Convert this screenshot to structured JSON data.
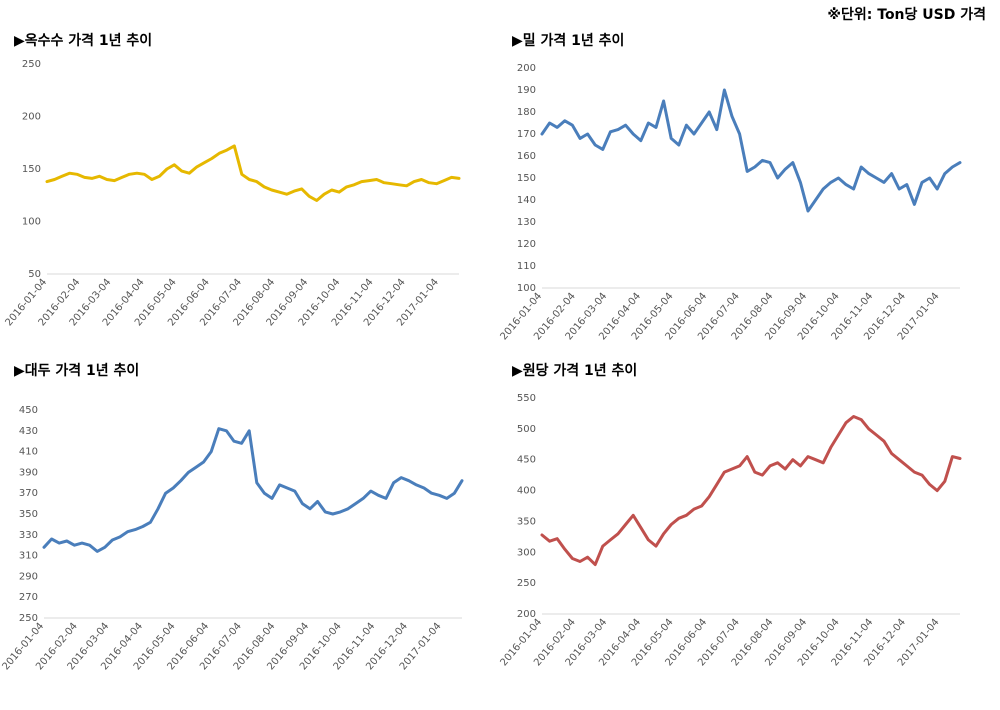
{
  "unit_note": "※단위: Ton당 USD 가격",
  "chart_data": [
    {
      "type": "line",
      "title": "▶옥수수 가격 1년 추이",
      "color": "#E6B800",
      "ylim": [
        50,
        250
      ],
      "yticks": [
        50,
        100,
        150,
        200,
        250
      ],
      "xticks": [
        "2016-01-04",
        "2016-02-04",
        "2016-03-04",
        "2016-04-04",
        "2016-05-04",
        "2016-06-04",
        "2016-07-04",
        "2016-08-04",
        "2016-09-04",
        "2016-10-04",
        "2016-11-04",
        "2016-12-04",
        "2017-01-04"
      ],
      "x": [
        "2016-01-04",
        "2016-01-11",
        "2016-01-18",
        "2016-01-25",
        "2016-02-01",
        "2016-02-08",
        "2016-02-15",
        "2016-02-22",
        "2016-02-29",
        "2016-03-07",
        "2016-03-14",
        "2016-03-21",
        "2016-03-28",
        "2016-04-04",
        "2016-04-11",
        "2016-04-18",
        "2016-04-25",
        "2016-05-02",
        "2016-05-09",
        "2016-05-16",
        "2016-05-23",
        "2016-05-30",
        "2016-06-06",
        "2016-06-13",
        "2016-06-20",
        "2016-06-27",
        "2016-07-04",
        "2016-07-11",
        "2016-07-18",
        "2016-07-25",
        "2016-08-01",
        "2016-08-08",
        "2016-08-15",
        "2016-08-22",
        "2016-08-29",
        "2016-09-05",
        "2016-09-12",
        "2016-09-19",
        "2016-09-26",
        "2016-10-03",
        "2016-10-10",
        "2016-10-17",
        "2016-10-24",
        "2016-10-31",
        "2016-11-07",
        "2016-11-14",
        "2016-11-21",
        "2016-11-28",
        "2016-12-05",
        "2016-12-12",
        "2016-12-19",
        "2016-12-26",
        "2017-01-02",
        "2017-01-09",
        "2017-01-16",
        "2017-01-23"
      ],
      "y": [
        138,
        140,
        143,
        146,
        145,
        142,
        141,
        143,
        140,
        139,
        142,
        145,
        146,
        145,
        140,
        143,
        150,
        154,
        148,
        146,
        152,
        156,
        160,
        165,
        168,
        172,
        145,
        140,
        138,
        133,
        130,
        128,
        126,
        129,
        131,
        124,
        120,
        126,
        130,
        128,
        133,
        135,
        138,
        139,
        140,
        137,
        136,
        135,
        134,
        138,
        140,
        137,
        136,
        139,
        142,
        141
      ]
    },
    {
      "type": "line",
      "title": "▶밀 가격 1년 추이",
      "color": "#4A7EBB",
      "ylim": [
        100,
        200
      ],
      "yticks": [
        100,
        110,
        120,
        130,
        140,
        150,
        160,
        170,
        180,
        190,
        200
      ],
      "xticks": [
        "2016-01-04",
        "2016-02-04",
        "2016-03-04",
        "2016-04-04",
        "2016-05-04",
        "2016-06-04",
        "2016-07-04",
        "2016-08-04",
        "2016-09-04",
        "2016-10-04",
        "2016-11-04",
        "2016-12-04",
        "2017-01-04"
      ],
      "x": [
        "2016-01-04",
        "2016-01-11",
        "2016-01-18",
        "2016-01-25",
        "2016-02-01",
        "2016-02-08",
        "2016-02-15",
        "2016-02-22",
        "2016-02-29",
        "2016-03-07",
        "2016-03-14",
        "2016-03-21",
        "2016-03-28",
        "2016-04-04",
        "2016-04-11",
        "2016-04-18",
        "2016-04-25",
        "2016-05-02",
        "2016-05-09",
        "2016-05-16",
        "2016-05-23",
        "2016-05-30",
        "2016-06-06",
        "2016-06-13",
        "2016-06-20",
        "2016-06-27",
        "2016-07-04",
        "2016-07-11",
        "2016-07-18",
        "2016-07-25",
        "2016-08-01",
        "2016-08-08",
        "2016-08-15",
        "2016-08-22",
        "2016-08-29",
        "2016-09-05",
        "2016-09-12",
        "2016-09-19",
        "2016-09-26",
        "2016-10-03",
        "2016-10-10",
        "2016-10-17",
        "2016-10-24",
        "2016-10-31",
        "2016-11-07",
        "2016-11-14",
        "2016-11-21",
        "2016-11-28",
        "2016-12-05",
        "2016-12-12",
        "2016-12-19",
        "2016-12-26",
        "2017-01-02",
        "2017-01-09",
        "2017-01-16",
        "2017-01-23"
      ],
      "y": [
        170,
        175,
        173,
        176,
        174,
        168,
        170,
        165,
        163,
        171,
        172,
        174,
        170,
        167,
        175,
        173,
        185,
        168,
        165,
        174,
        170,
        175,
        180,
        172,
        190,
        178,
        170,
        153,
        155,
        158,
        157,
        150,
        154,
        157,
        148,
        135,
        140,
        145,
        148,
        150,
        147,
        145,
        155,
        152,
        150,
        148,
        152,
        145,
        147,
        138,
        148,
        150,
        145,
        152,
        155,
        157
      ]
    },
    {
      "type": "line",
      "title": "▶대두 가격 1년 추이",
      "color": "#4A7EBB",
      "ylim": [
        250,
        450
      ],
      "yticks": [
        250,
        270,
        290,
        310,
        330,
        350,
        370,
        390,
        410,
        430,
        450
      ],
      "xticks": [
        "2016-01-04",
        "2016-02-04",
        "2016-03-04",
        "2016-04-04",
        "2016-05-04",
        "2016-06-04",
        "2016-07-04",
        "2016-08-04",
        "2016-09-04",
        "2016-10-04",
        "2016-11-04",
        "2016-12-04",
        "2017-01-04"
      ],
      "x": [
        "2016-01-04",
        "2016-01-11",
        "2016-01-18",
        "2016-01-25",
        "2016-02-01",
        "2016-02-08",
        "2016-02-15",
        "2016-02-22",
        "2016-02-29",
        "2016-03-07",
        "2016-03-14",
        "2016-03-21",
        "2016-03-28",
        "2016-04-04",
        "2016-04-11",
        "2016-04-18",
        "2016-04-25",
        "2016-05-02",
        "2016-05-09",
        "2016-05-16",
        "2016-05-23",
        "2016-05-30",
        "2016-06-06",
        "2016-06-13",
        "2016-06-20",
        "2016-06-27",
        "2016-07-04",
        "2016-07-11",
        "2016-07-18",
        "2016-07-25",
        "2016-08-01",
        "2016-08-08",
        "2016-08-15",
        "2016-08-22",
        "2016-08-29",
        "2016-09-05",
        "2016-09-12",
        "2016-09-19",
        "2016-09-26",
        "2016-10-03",
        "2016-10-10",
        "2016-10-17",
        "2016-10-24",
        "2016-10-31",
        "2016-11-07",
        "2016-11-14",
        "2016-11-21",
        "2016-11-28",
        "2016-12-05",
        "2016-12-12",
        "2016-12-19",
        "2016-12-26",
        "2017-01-02",
        "2017-01-09",
        "2017-01-16",
        "2017-01-23"
      ],
      "y": [
        318,
        326,
        322,
        324,
        320,
        322,
        320,
        314,
        318,
        325,
        328,
        333,
        335,
        338,
        342,
        355,
        370,
        375,
        382,
        390,
        395,
        400,
        410,
        432,
        430,
        420,
        418,
        430,
        380,
        370,
        365,
        378,
        375,
        372,
        360,
        355,
        362,
        352,
        350,
        352,
        355,
        360,
        365,
        372,
        368,
        365,
        380,
        385,
        382,
        378,
        375,
        370,
        368,
        365,
        370,
        382
      ]
    },
    {
      "type": "line",
      "title": "▶원당 가격 1년 추이",
      "color": "#C0504D",
      "ylim": [
        200,
        550
      ],
      "yticks": [
        200,
        250,
        300,
        350,
        400,
        450,
        500,
        550
      ],
      "xticks": [
        "2016-01-04",
        "2016-02-04",
        "2016-03-04",
        "2016-04-04",
        "2016-05-04",
        "2016-06-04",
        "2016-07-04",
        "2016-08-04",
        "2016-09-04",
        "2016-10-04",
        "2016-11-04",
        "2016-12-04",
        "2017-01-04"
      ],
      "x": [
        "2016-01-04",
        "2016-01-11",
        "2016-01-18",
        "2016-01-25",
        "2016-02-01",
        "2016-02-08",
        "2016-02-15",
        "2016-02-22",
        "2016-02-29",
        "2016-03-07",
        "2016-03-14",
        "2016-03-21",
        "2016-03-28",
        "2016-04-04",
        "2016-04-11",
        "2016-04-18",
        "2016-04-25",
        "2016-05-02",
        "2016-05-09",
        "2016-05-16",
        "2016-05-23",
        "2016-05-30",
        "2016-06-06",
        "2016-06-13",
        "2016-06-20",
        "2016-06-27",
        "2016-07-04",
        "2016-07-11",
        "2016-07-18",
        "2016-07-25",
        "2016-08-01",
        "2016-08-08",
        "2016-08-15",
        "2016-08-22",
        "2016-08-29",
        "2016-09-05",
        "2016-09-12",
        "2016-09-19",
        "2016-09-26",
        "2016-10-03",
        "2016-10-10",
        "2016-10-17",
        "2016-10-24",
        "2016-10-31",
        "2016-11-07",
        "2016-11-14",
        "2016-11-21",
        "2016-11-28",
        "2016-12-05",
        "2016-12-12",
        "2016-12-19",
        "2016-12-26",
        "2017-01-02",
        "2017-01-09",
        "2017-01-16",
        "2017-01-23"
      ],
      "y": [
        328,
        318,
        322,
        305,
        290,
        285,
        292,
        280,
        310,
        320,
        330,
        345,
        360,
        340,
        320,
        310,
        330,
        345,
        355,
        360,
        370,
        375,
        390,
        410,
        430,
        435,
        440,
        455,
        430,
        425,
        440,
        445,
        435,
        450,
        440,
        455,
        450,
        445,
        470,
        490,
        510,
        520,
        515,
        500,
        490,
        480,
        460,
        450,
        440,
        430,
        425,
        410,
        400,
        415,
        455,
        452
      ]
    }
  ]
}
